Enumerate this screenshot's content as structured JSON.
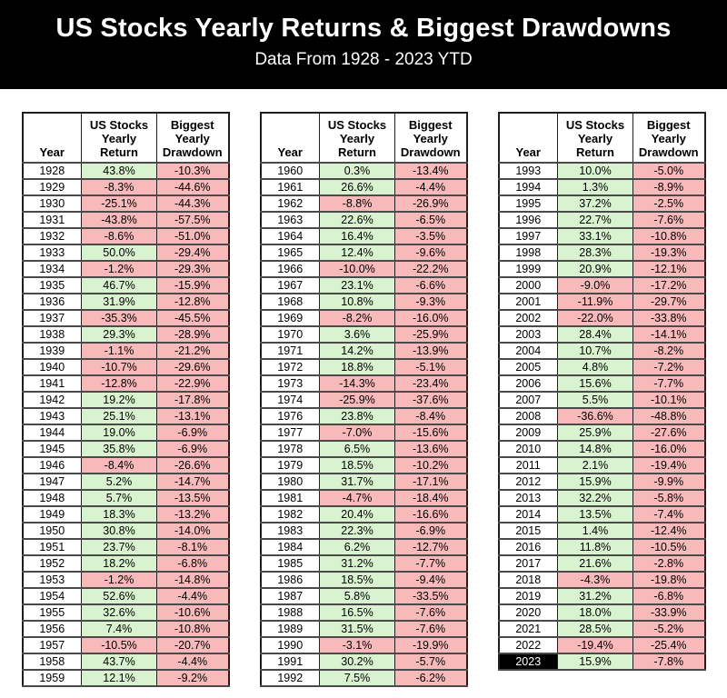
{
  "header": {
    "title": "US Stocks Yearly Returns & Biggest Drawdowns",
    "subtitle": "Data From 1928 - 2023 YTD"
  },
  "table_template": {
    "col_year": "Year",
    "col_return": "US Stocks\nYearly\nReturn",
    "col_drawdown": "Biggest\nYearly\nDrawdown"
  },
  "highlight_year": "2023",
  "colors": {
    "header_bg": "#000000",
    "header_text": "#ffffff",
    "positive_bg": "#d9f2d0",
    "negative_bg": "#f7b9ba",
    "highlight_year_bg": "#000000",
    "highlight_year_text": "#ffffff"
  },
  "chart_data": {
    "type": "table",
    "title": "US Stocks Yearly Returns & Biggest Drawdowns",
    "subtitle": "Data From 1928 - 2023 YTD",
    "columns": [
      "Year",
      "US Stocks Yearly Return",
      "Biggest Yearly Drawdown"
    ],
    "tables": [
      {
        "name": "1928-1959",
        "rows": [
          [
            "1928",
            "43.8%",
            "-10.3%"
          ],
          [
            "1929",
            "-8.3%",
            "-44.6%"
          ],
          [
            "1930",
            "-25.1%",
            "-44.3%"
          ],
          [
            "1931",
            "-43.8%",
            "-57.5%"
          ],
          [
            "1932",
            "-8.6%",
            "-51.0%"
          ],
          [
            "1933",
            "50.0%",
            "-29.4%"
          ],
          [
            "1934",
            "-1.2%",
            "-29.3%"
          ],
          [
            "1935",
            "46.7%",
            "-15.9%"
          ],
          [
            "1936",
            "31.9%",
            "-12.8%"
          ],
          [
            "1937",
            "-35.3%",
            "-45.5%"
          ],
          [
            "1938",
            "29.3%",
            "-28.9%"
          ],
          [
            "1939",
            "-1.1%",
            "-21.2%"
          ],
          [
            "1940",
            "-10.7%",
            "-29.6%"
          ],
          [
            "1941",
            "-12.8%",
            "-22.9%"
          ],
          [
            "1942",
            "19.2%",
            "-17.8%"
          ],
          [
            "1943",
            "25.1%",
            "-13.1%"
          ],
          [
            "1944",
            "19.0%",
            "-6.9%"
          ],
          [
            "1945",
            "35.8%",
            "-6.9%"
          ],
          [
            "1946",
            "-8.4%",
            "-26.6%"
          ],
          [
            "1947",
            "5.2%",
            "-14.7%"
          ],
          [
            "1948",
            "5.7%",
            "-13.5%"
          ],
          [
            "1949",
            "18.3%",
            "-13.2%"
          ],
          [
            "1950",
            "30.8%",
            "-14.0%"
          ],
          [
            "1951",
            "23.7%",
            "-8.1%"
          ],
          [
            "1952",
            "18.2%",
            "-6.8%"
          ],
          [
            "1953",
            "-1.2%",
            "-14.8%"
          ],
          [
            "1954",
            "52.6%",
            "-4.4%"
          ],
          [
            "1955",
            "32.6%",
            "-10.6%"
          ],
          [
            "1956",
            "7.4%",
            "-10.8%"
          ],
          [
            "1957",
            "-10.5%",
            "-20.7%"
          ],
          [
            "1958",
            "43.7%",
            "-4.4%"
          ],
          [
            "1959",
            "12.1%",
            "-9.2%"
          ]
        ]
      },
      {
        "name": "1960-1992",
        "rows": [
          [
            "1960",
            "0.3%",
            "-13.4%"
          ],
          [
            "1961",
            "26.6%",
            "-4.4%"
          ],
          [
            "1962",
            "-8.8%",
            "-26.9%"
          ],
          [
            "1963",
            "22.6%",
            "-6.5%"
          ],
          [
            "1964",
            "16.4%",
            "-3.5%"
          ],
          [
            "1965",
            "12.4%",
            "-9.6%"
          ],
          [
            "1966",
            "-10.0%",
            "-22.2%"
          ],
          [
            "1967",
            "23.1%",
            "-6.6%"
          ],
          [
            "1968",
            "10.8%",
            "-9.3%"
          ],
          [
            "1969",
            "-8.2%",
            "-16.0%"
          ],
          [
            "1970",
            "3.6%",
            "-25.9%"
          ],
          [
            "1971",
            "14.2%",
            "-13.9%"
          ],
          [
            "1972",
            "18.8%",
            "-5.1%"
          ],
          [
            "1973",
            "-14.3%",
            "-23.4%"
          ],
          [
            "1974",
            "-25.9%",
            "-37.6%"
          ],
          [
            "1976",
            "23.8%",
            "-8.4%"
          ],
          [
            "1977",
            "-7.0%",
            "-15.6%"
          ],
          [
            "1978",
            "6.5%",
            "-13.6%"
          ],
          [
            "1979",
            "18.5%",
            "-10.2%"
          ],
          [
            "1980",
            "31.7%",
            "-17.1%"
          ],
          [
            "1981",
            "-4.7%",
            "-18.4%"
          ],
          [
            "1982",
            "20.4%",
            "-16.6%"
          ],
          [
            "1983",
            "22.3%",
            "-6.9%"
          ],
          [
            "1984",
            "6.2%",
            "-12.7%"
          ],
          [
            "1985",
            "31.2%",
            "-7.7%"
          ],
          [
            "1986",
            "18.5%",
            "-9.4%"
          ],
          [
            "1987",
            "5.8%",
            "-33.5%"
          ],
          [
            "1988",
            "16.5%",
            "-7.6%"
          ],
          [
            "1989",
            "31.5%",
            "-7.6%"
          ],
          [
            "1990",
            "-3.1%",
            "-19.9%"
          ],
          [
            "1991",
            "30.2%",
            "-5.7%"
          ],
          [
            "1992",
            "7.5%",
            "-6.2%"
          ]
        ]
      },
      {
        "name": "1993-2023",
        "rows": [
          [
            "1993",
            "10.0%",
            "-5.0%"
          ],
          [
            "1994",
            "1.3%",
            "-8.9%"
          ],
          [
            "1995",
            "37.2%",
            "-2.5%"
          ],
          [
            "1996",
            "22.7%",
            "-7.6%"
          ],
          [
            "1997",
            "33.1%",
            "-10.8%"
          ],
          [
            "1998",
            "28.3%",
            "-19.3%"
          ],
          [
            "1999",
            "20.9%",
            "-12.1%"
          ],
          [
            "2000",
            "-9.0%",
            "-17.2%"
          ],
          [
            "2001",
            "-11.9%",
            "-29.7%"
          ],
          [
            "2002",
            "-22.0%",
            "-33.8%"
          ],
          [
            "2003",
            "28.4%",
            "-14.1%"
          ],
          [
            "2004",
            "10.7%",
            "-8.2%"
          ],
          [
            "2005",
            "4.8%",
            "-7.2%"
          ],
          [
            "2006",
            "15.6%",
            "-7.7%"
          ],
          [
            "2007",
            "5.5%",
            "-10.1%"
          ],
          [
            "2008",
            "-36.6%",
            "-48.8%"
          ],
          [
            "2009",
            "25.9%",
            "-27.6%"
          ],
          [
            "2010",
            "14.8%",
            "-16.0%"
          ],
          [
            "2011",
            "2.1%",
            "-19.4%"
          ],
          [
            "2012",
            "15.9%",
            "-9.9%"
          ],
          [
            "2013",
            "32.2%",
            "-5.8%"
          ],
          [
            "2014",
            "13.5%",
            "-7.4%"
          ],
          [
            "2015",
            "1.4%",
            "-12.4%"
          ],
          [
            "2016",
            "11.8%",
            "-10.5%"
          ],
          [
            "2017",
            "21.6%",
            "-2.8%"
          ],
          [
            "2018",
            "-4.3%",
            "-19.8%"
          ],
          [
            "2019",
            "31.2%",
            "-6.8%"
          ],
          [
            "2020",
            "18.0%",
            "-33.9%"
          ],
          [
            "2021",
            "28.5%",
            "-5.2%"
          ],
          [
            "2022",
            "-19.4%",
            "-25.4%"
          ],
          [
            "2023",
            "15.9%",
            "-7.8%"
          ]
        ]
      }
    ]
  }
}
